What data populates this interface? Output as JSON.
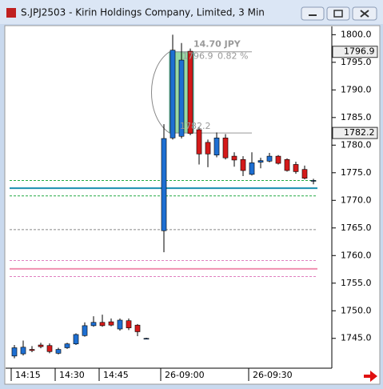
{
  "window": {
    "title": "S.JPJ2503 - Kirin Holdings Company, Limited, 3 Min"
  },
  "chart_data": {
    "type": "candlestick",
    "x": [
      0,
      1,
      2,
      3,
      4,
      5,
      6,
      7,
      8,
      9,
      10,
      11,
      12,
      13,
      14,
      15,
      17,
      18,
      19,
      20,
      21,
      22,
      23,
      24,
      25,
      26,
      27,
      28,
      29,
      30,
      31,
      32,
      33,
      34
    ],
    "open": [
      1741.8,
      1742.2,
      1743.0,
      1743.8,
      1743.7,
      1742.3,
      1743.3,
      1744.0,
      1745.5,
      1747.3,
      1747.9,
      1748.0,
      1746.7,
      1748.2,
      1747.4,
      1745.0,
      1764.5,
      1781.3,
      1781.6,
      1797.0,
      1782.8,
      1780.5,
      1778.2,
      1781.3,
      1778.0,
      1777.4,
      1774.7,
      1776.9,
      1777.1,
      1778.0,
      1777.4,
      1776.5,
      1775.6,
      1773.6
    ],
    "high": [
      1743.8,
      1744.6,
      1743.6,
      1744.2,
      1744.1,
      1743.3,
      1744.2,
      1745.9,
      1747.9,
      1749.0,
      1749.3,
      1748.6,
      1748.6,
      1748.6,
      1747.6,
      1745.1,
      1783.8,
      1800.0,
      1798.5,
      1797.5,
      1783.2,
      1781.0,
      1782.3,
      1782.0,
      1778.7,
      1778.0,
      1778.7,
      1777.7,
      1778.6,
      1778.2,
      1777.6,
      1777.0,
      1776.3,
      1773.9
    ],
    "low": [
      1741.4,
      1741.9,
      1742.5,
      1743.2,
      1742.3,
      1742.1,
      1743.1,
      1743.8,
      1745.3,
      1747.1,
      1747.1,
      1747.2,
      1746.4,
      1746.5,
      1745.4,
      1744.9,
      1760.6,
      1781.0,
      1781.2,
      1781.8,
      1776.5,
      1776.0,
      1777.8,
      1777.4,
      1776.1,
      1774.4,
      1774.5,
      1775.8,
      1776.9,
      1776.5,
      1775.2,
      1774.8,
      1773.8,
      1772.9
    ],
    "close": [
      1743.3,
      1743.4,
      1742.8,
      1743.5,
      1742.6,
      1743.0,
      1744.0,
      1745.7,
      1747.3,
      1747.9,
      1747.3,
      1747.4,
      1748.3,
      1746.9,
      1746.2,
      1745.0,
      1781.2,
      1797.2,
      1795.4,
      1782.1,
      1778.4,
      1778.4,
      1781.3,
      1777.7,
      1777.3,
      1775.4,
      1776.8,
      1777.2,
      1778.0,
      1776.7,
      1775.4,
      1775.2,
      1774.0,
      1773.6
    ],
    "up_color": "#1e6fd2",
    "down_color": "#d41a1a",
    "xlim": [
      -1,
      36
    ],
    "xticks": [
      {
        "value": 0,
        "label": "14:15"
      },
      {
        "value": 5,
        "label": "14:30"
      },
      {
        "value": 10,
        "label": "14:45"
      },
      {
        "value": 17,
        "label": "26-09:00"
      },
      {
        "value": 27,
        "label": "26-09:30"
      }
    ],
    "ylim": [
      1739.6,
      1801.5
    ],
    "yticks": [
      {
        "value": 1745,
        "label": "1745.0"
      },
      {
        "value": 1750,
        "label": "1750.0"
      },
      {
        "value": 1755,
        "label": "1755.0"
      },
      {
        "value": 1760,
        "label": "1760.0"
      },
      {
        "value": 1765,
        "label": "1765.0"
      },
      {
        "value": 1770,
        "label": "1770.0"
      },
      {
        "value": 1775,
        "label": "1775.0"
      },
      {
        "value": 1780,
        "label": "1780.0"
      },
      {
        "value": 1785,
        "label": "1785.0"
      },
      {
        "value": 1790,
        "label": "1790.0"
      },
      {
        "value": 1795,
        "label": "1795.0"
      },
      {
        "value": 1800,
        "label": "1800.0"
      }
    ],
    "levels": [
      {
        "value": 1773.6,
        "color": "#22aa44",
        "dashed": true
      },
      {
        "value": 1772.2,
        "color": "#1a8fb0",
        "dashed": false
      },
      {
        "value": 1770.8,
        "color": "#22aa44",
        "dashed": true
      },
      {
        "value": 1764.7,
        "color": "#888888",
        "dashed": true
      },
      {
        "value": 1759.1,
        "color": "#e080c0",
        "dashed": true
      },
      {
        "value": 1757.6,
        "color": "#f090b0",
        "dashed": false
      },
      {
        "value": 1756.2,
        "color": "#e080c0",
        "dashed": true
      }
    ],
    "measure": {
      "x": [
        18,
        20
      ],
      "from": 1782.2,
      "to": 1796.9,
      "change_label": "14.70 JPY",
      "percent_label": "0.82 %",
      "color": "#7fcf8f"
    },
    "price_tags": [
      1796.9,
      1782.2
    ]
  }
}
